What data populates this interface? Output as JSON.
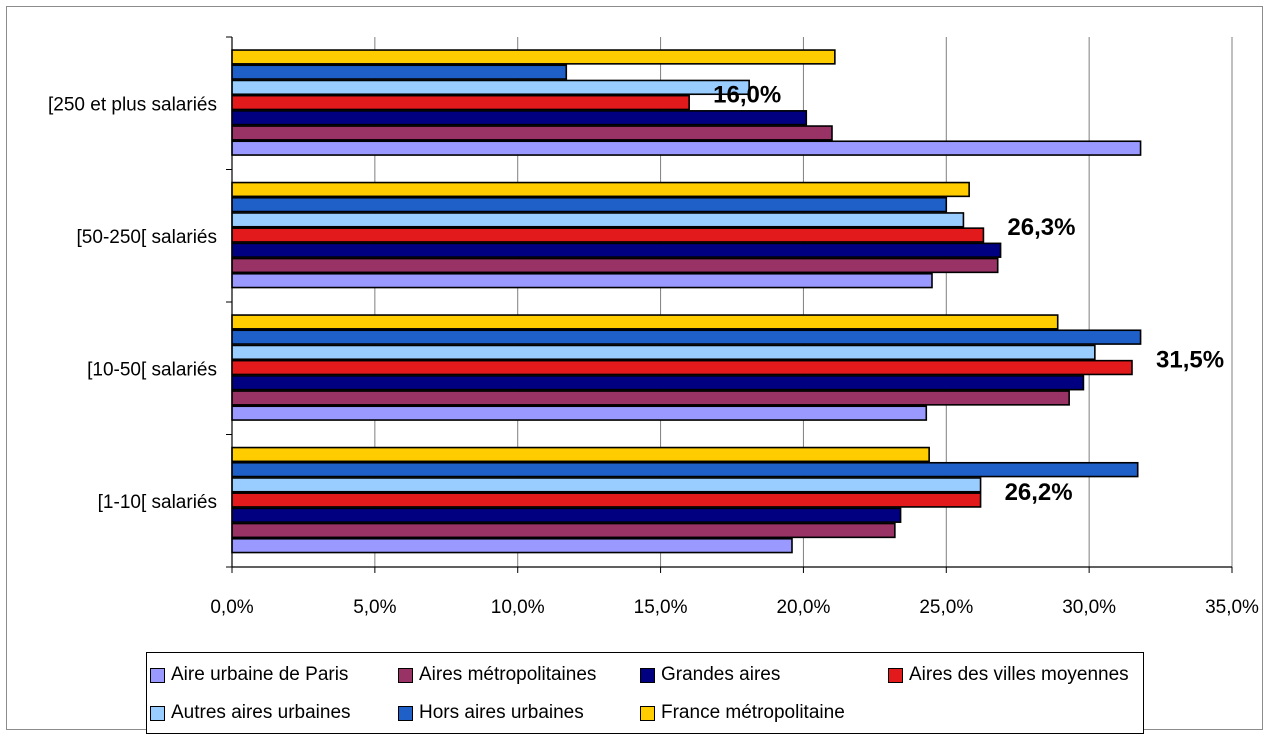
{
  "chart_data": {
    "type": "bar",
    "orientation": "horizontal",
    "categories": [
      "[250 et plus salariés",
      "[50-250[ salariés",
      "[10-50[ salariés",
      "[1-10[ salariés"
    ],
    "series": [
      {
        "name": "Aire urbaine de Paris",
        "color": "#9999ff",
        "values": [
          31.8,
          24.5,
          24.3,
          19.6
        ]
      },
      {
        "name": "Aires métropolitaines",
        "color": "#993366",
        "values": [
          21.0,
          26.8,
          29.3,
          23.2
        ]
      },
      {
        "name": "Grandes aires",
        "color": "#000080",
        "values": [
          20.1,
          26.9,
          29.8,
          23.4
        ]
      },
      {
        "name": "Aires des villes moyennes",
        "color": "#e31a1c",
        "values": [
          16.0,
          26.3,
          31.5,
          26.2
        ]
      },
      {
        "name": "Autres aires urbaines",
        "color": "#99ccff",
        "values": [
          18.1,
          25.6,
          30.2,
          26.2
        ]
      },
      {
        "name": "Hors aires urbaines",
        "color": "#1f5fc8",
        "values": [
          11.7,
          25.0,
          31.8,
          31.7
        ]
      },
      {
        "name": "France métropolitaine",
        "color": "#ffcc00",
        "values": [
          21.1,
          25.8,
          28.9,
          24.4
        ]
      }
    ],
    "xlim": [
      0,
      35
    ],
    "xticks": [
      "0,0%",
      "5,0%",
      "10,0%",
      "15,0%",
      "20,0%",
      "25,0%",
      "30,0%",
      "35,0%"
    ],
    "annotations": [
      "16,0%",
      "26,3%",
      "31,5%",
      "26,2%"
    ],
    "grid": "vertical",
    "legend_position": "bottom",
    "title": "",
    "xlabel": "",
    "ylabel": ""
  }
}
